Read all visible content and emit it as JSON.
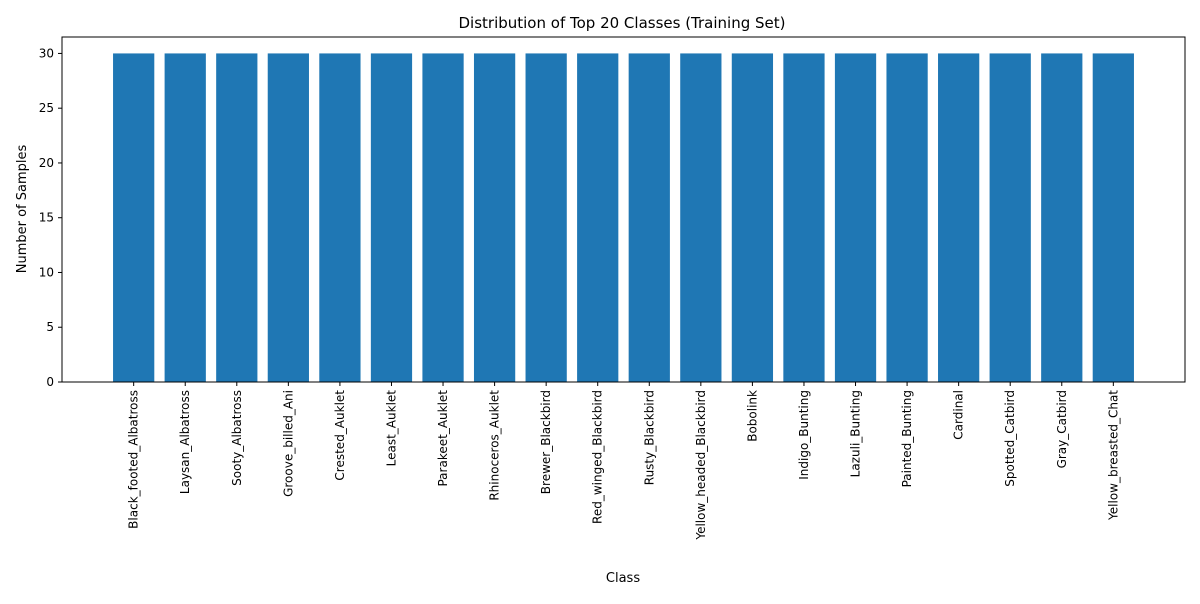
{
  "chart_data": {
    "type": "bar",
    "title": "Distribution of Top 20 Classes (Training Set)",
    "xlabel": "Class",
    "ylabel": "Number of Samples",
    "categories": [
      "Black_footed_Albatross",
      "Laysan_Albatross",
      "Sooty_Albatross",
      "Groove_billed_Ani",
      "Crested_Auklet",
      "Least_Auklet",
      "Parakeet_Auklet",
      "Rhinoceros_Auklet",
      "Brewer_Blackbird",
      "Red_winged_Blackbird",
      "Rusty_Blackbird",
      "Yellow_headed_Blackbird",
      "Bobolink",
      "Indigo_Bunting",
      "Lazuli_Bunting",
      "Painted_Bunting",
      "Cardinal",
      "Spotted_Catbird",
      "Gray_Catbird",
      "Yellow_breasted_Chat"
    ],
    "values": [
      30,
      30,
      30,
      30,
      30,
      30,
      30,
      30,
      30,
      30,
      30,
      30,
      30,
      30,
      30,
      30,
      30,
      30,
      30,
      30
    ],
    "ylim": [
      0,
      31.5
    ],
    "yticks": [
      "0",
      "5",
      "10",
      "15",
      "20",
      "25",
      "30"
    ],
    "bar_color": "#1f77b4",
    "grid": false,
    "legend": "none"
  }
}
